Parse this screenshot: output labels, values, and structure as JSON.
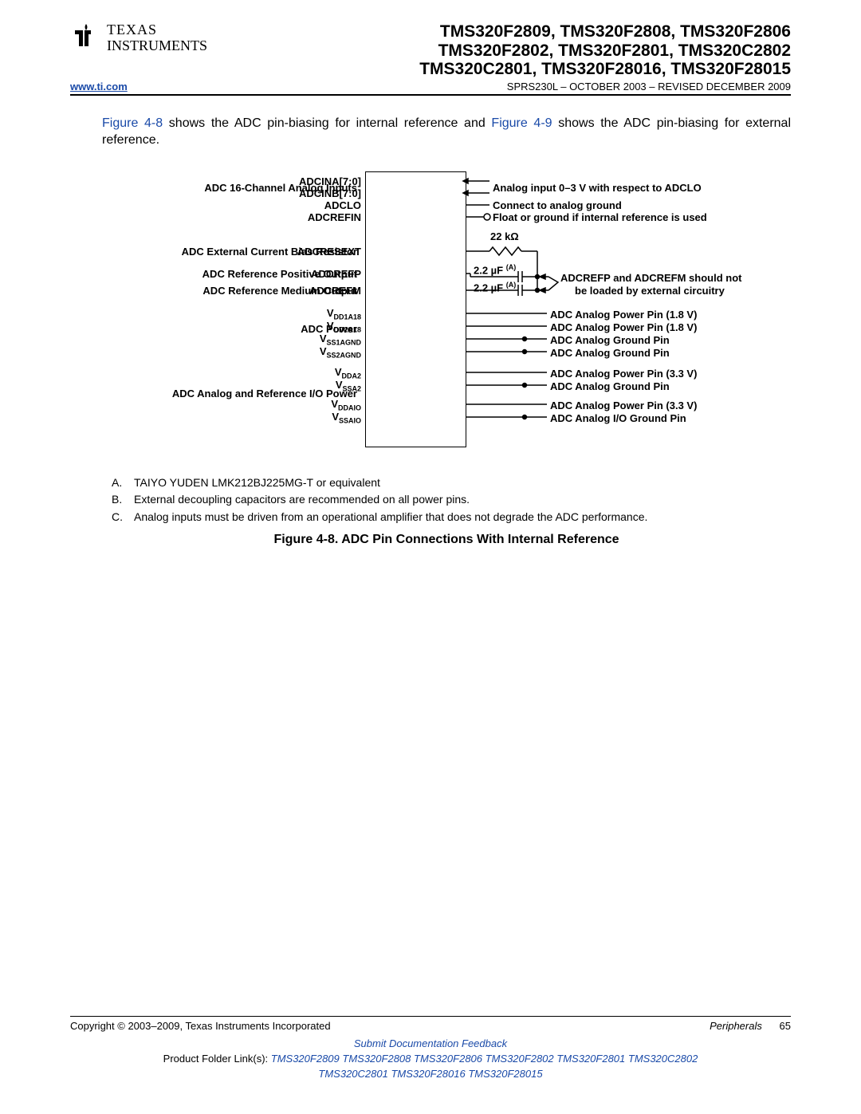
{
  "header": {
    "logo_line1": "TEXAS",
    "logo_line2": "INSTRUMENTS",
    "parts_l1": "TMS320F2809, TMS320F2808, TMS320F2806",
    "parts_l2": "TMS320F2802, TMS320F2801, TMS320C2802",
    "parts_l3": "TMS320C2801, TMS320F28016, TMS320F28015",
    "url": "www.ti.com",
    "docinfo": "SPRS230L – OCTOBER 2003 – REVISED DECEMBER 2009"
  },
  "intro": {
    "link1": "Figure 4-8",
    "t1": " shows the ADC pin-biasing for internal reference and ",
    "link2": "Figure 4-9",
    "t2": " shows the ADC pin-biasing for external reference."
  },
  "figure": {
    "left_labels": {
      "inputs": "ADC 16-Channel Analog Inputs",
      "bias": "ADC External Current Bias Resistor",
      "refp": "ADC Reference Positive Output",
      "refm": "ADC Reference Medium Output",
      "power": "ADC Power",
      "iopower": "ADC Analog and Reference I/O Power"
    },
    "pins": {
      "adcina": "ADCINA[7:0]",
      "adcinb": "ADCINB[7:0]",
      "adclo": "ADCLO",
      "adcrefin": "ADCREFIN",
      "adcresext": "ADCRESEXT",
      "adcrefp": "ADCREFP",
      "adcrefm": "ADCREFM",
      "vdd1a18": "V",
      "vdd1a18_sub": "DD1A18",
      "vdd2a18": "V",
      "vdd2a18_sub": "DD2A18",
      "vss1a": "V",
      "vss1a_sub": "SS1AGND",
      "vss2a": "V",
      "vss2a_sub": "SS2AGND",
      "vdda2": "V",
      "vdda2_sub": "DDA2",
      "vssa2": "V",
      "vssa2_sub": "SSA2",
      "vddaio": "V",
      "vddaio_sub": "DDAIO",
      "vssaio": "V",
      "vssaio_sub": "SSAIO"
    },
    "values": {
      "res": "22 kΩ",
      "cap1": "2.2 µF",
      "cap_note": "(A)",
      "cap2": "2.2 µF"
    },
    "right": {
      "analog_in": "Analog input 0–3 V with respect to  ADCLO",
      "adclo": "Connect to analog ground",
      "adcrefin": "Float or ground if internal reference is used",
      "refnote_l1": "ADCREFP and ADCREFM should not",
      "refnote_l2": "be loaded by external circuitry",
      "vdd1a18": "ADC Analog Power Pin (1.8 V)",
      "vdd2a18": "ADC Analog Power Pin (1.8 V)",
      "vss1a": "ADC Analog Ground Pin",
      "vss2a": "ADC Analog Ground Pin",
      "vdda2": "ADC Analog Power Pin (3.3 V)",
      "vssa2": "ADC Analog Ground Pin",
      "vddaio": "ADC Analog Power Pin (3.3 V)",
      "vssaio": "ADC Analog I/O Ground Pin"
    },
    "notes": {
      "a": "TAIYO YUDEN LMK212BJ225MG-T or equivalent",
      "b": "External decoupling capacitors are recommended on all power pins.",
      "c": "Analog inputs must be driven from an operational amplifier that does not degrade the ADC performance."
    },
    "caption": "Figure 4-8. ADC Pin Connections With Internal Reference"
  },
  "footer": {
    "copyright": "Copyright © 2003–2009, Texas Instruments Incorporated",
    "section": "Peripherals",
    "page": "65",
    "feedback": "Submit Documentation Feedback",
    "folder_prefix": "Product Folder Link(s): ",
    "links": [
      "TMS320F2809",
      "TMS320F2808",
      "TMS320F2806",
      "TMS320F2802",
      "TMS320F2801",
      "TMS320C2802",
      "TMS320C2801",
      "TMS320F28016",
      "TMS320F28015"
    ]
  },
  "colors": {
    "link": "#1a4aa8",
    "text": "#000000",
    "bg": "#ffffff"
  }
}
